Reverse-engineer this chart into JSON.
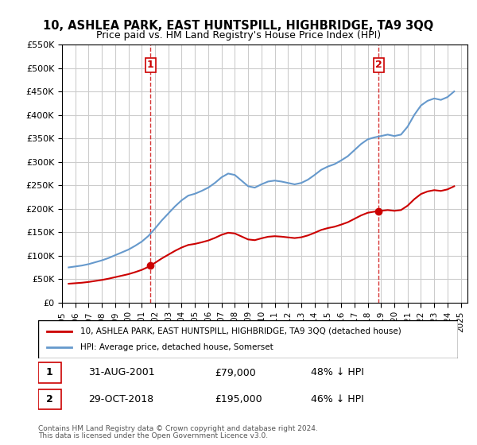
{
  "title": "10, ASHLEA PARK, EAST HUNTSPILL, HIGHBRIDGE, TA9 3QQ",
  "subtitle": "Price paid vs. HM Land Registry's House Price Index (HPI)",
  "transactions": [
    {
      "label": "1",
      "date_str": "31-AUG-2001",
      "date_num": 2001.664,
      "price": 79000,
      "pct": "48% ↓ HPI"
    },
    {
      "label": "2",
      "date_str": "29-OCT-2018",
      "date_num": 2018.826,
      "price": 195000,
      "pct": "46% ↓ HPI"
    }
  ],
  "legend_entry1": "10, ASHLEA PARK, EAST HUNTSPILL, HIGHBRIDGE, TA9 3QQ (detached house)",
  "legend_entry2": "HPI: Average price, detached house, Somerset",
  "footer1": "Contains HM Land Registry data © Crown copyright and database right 2024.",
  "footer2": "This data is licensed under the Open Government Licence v3.0.",
  "red_color": "#cc0000",
  "blue_color": "#6699cc",
  "marker_color_red": "#cc0000",
  "vline_color": "#cc0000",
  "background_color": "#ffffff",
  "grid_color": "#cccccc",
  "ylim": [
    0,
    550000
  ],
  "xlim": [
    1995.0,
    2025.5
  ]
}
